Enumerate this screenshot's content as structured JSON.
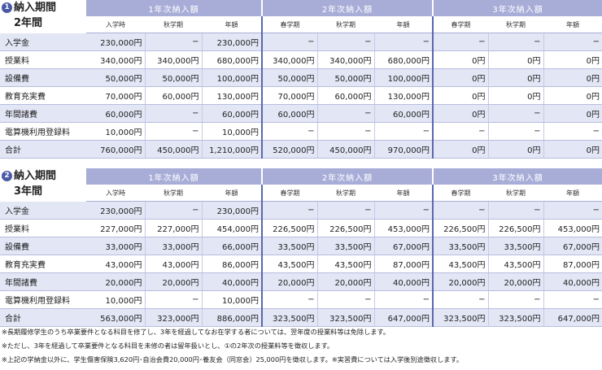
{
  "sections": [
    {
      "num": "1",
      "title_line1": "納入期間",
      "title_line2": "2年間",
      "year_headers": [
        "1年次納入額",
        "2年次納入額",
        "3年次納入額"
      ],
      "sub_headers": [
        [
          "入学時",
          "秋学期",
          "年額"
        ],
        [
          "春学期",
          "秋学期",
          "年額"
        ],
        [
          "春学期",
          "秋学期",
          "年額"
        ]
      ],
      "rows": [
        {
          "label": "入学金",
          "values": [
            "230,000円",
            "−",
            "230,000円",
            "−",
            "−",
            "−",
            "−",
            "−",
            "−"
          ]
        },
        {
          "label": "授業料",
          "values": [
            "340,000円",
            "340,000円",
            "680,000円",
            "340,000円",
            "340,000円",
            "680,000円",
            "0円",
            "0円",
            "0円"
          ]
        },
        {
          "label": "設備費",
          "values": [
            "50,000円",
            "50,000円",
            "100,000円",
            "50,000円",
            "50,000円",
            "100,000円",
            "0円",
            "0円",
            "0円"
          ]
        },
        {
          "label": "教育充実費",
          "values": [
            "70,000円",
            "60,000円",
            "130,000円",
            "70,000円",
            "60,000円",
            "130,000円",
            "0円",
            "0円",
            "0円"
          ]
        },
        {
          "label": "年間諸費",
          "values": [
            "60,000円",
            "−",
            "60,000円",
            "60,000円",
            "−",
            "60,000円",
            "0円",
            "−",
            "0円"
          ]
        },
        {
          "label": "電算機利用登録料",
          "values": [
            "10,000円",
            "−",
            "10,000円",
            "−",
            "−",
            "−",
            "−",
            "−",
            "−"
          ]
        },
        {
          "label": "合計",
          "values": [
            "760,000円",
            "450,000円",
            "1,210,000円",
            "520,000円",
            "450,000円",
            "970,000円",
            "0円",
            "0円",
            "0円"
          ]
        }
      ]
    },
    {
      "num": "2",
      "title_line1": "納入期間",
      "title_line2": "3年間",
      "year_headers": [
        "1年次納入額",
        "2年次納入額",
        "3年次納入額"
      ],
      "sub_headers": [
        [
          "入学時",
          "秋学期",
          "年額"
        ],
        [
          "春学期",
          "秋学期",
          "年額"
        ],
        [
          "春学期",
          "秋学期",
          "年額"
        ]
      ],
      "rows": [
        {
          "label": "入学金",
          "values": [
            "230,000円",
            "−",
            "230,000円",
            "−",
            "−",
            "−",
            "−",
            "−",
            "−"
          ]
        },
        {
          "label": "授業料",
          "values": [
            "227,000円",
            "227,000円",
            "454,000円",
            "226,500円",
            "226,500円",
            "453,000円",
            "226,500円",
            "226,500円",
            "453,000円"
          ]
        },
        {
          "label": "設備費",
          "values": [
            "33,000円",
            "33,000円",
            "66,000円",
            "33,500円",
            "33,500円",
            "67,000円",
            "33,500円",
            "33,500円",
            "67,000円"
          ]
        },
        {
          "label": "教育充実費",
          "values": [
            "43,000円",
            "43,000円",
            "86,000円",
            "43,500円",
            "43,500円",
            "87,000円",
            "43,500円",
            "43,500円",
            "87,000円"
          ]
        },
        {
          "label": "年間諸費",
          "values": [
            "20,000円",
            "20,000円",
            "40,000円",
            "20,000円",
            "20,000円",
            "40,000円",
            "20,000円",
            "20,000円",
            "40,000円"
          ]
        },
        {
          "label": "電算機利用登録料",
          "values": [
            "10,000円",
            "−",
            "10,000円",
            "−",
            "−",
            "−",
            "−",
            "−",
            "−"
          ]
        },
        {
          "label": "合計",
          "values": [
            "563,000円",
            "323,000円",
            "886,000円",
            "323,500円",
            "323,500円",
            "647,000円",
            "323,500円",
            "323,500円",
            "647,000円"
          ]
        }
      ]
    }
  ],
  "notes": [
    "※長期履修学生のうち卒業要件となる科目を修了し、3年を経過してなお在学する者については、翌年度の授業料等は免除します。",
    "※ただし、3年を経過して卒業要件となる科目を未修の者は留年扱いとし、①の2年次の授業料等を徴収します。",
    "※上記の学納金以外に、学生傷害保険3,620円･自治会費20,000円･養友会（同窓会）25,000円を徴収します。※実習費については入学後別途徴収します。"
  ],
  "colors": {
    "header_bg": "#a8add8",
    "stripe_bg": "#e3e6f5",
    "separator": "#5a67b0",
    "number_badge": "#4a5aa5"
  }
}
